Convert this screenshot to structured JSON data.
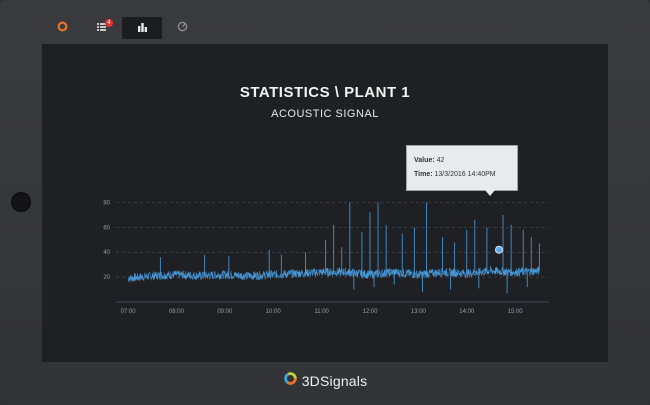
{
  "tabs": [
    {
      "icon": "donut-logo-icon",
      "badge": ""
    },
    {
      "icon": "alerts-list-icon",
      "badge": "4"
    },
    {
      "icon": "bar-chart-icon",
      "badge": ""
    },
    {
      "icon": "gauge-icon",
      "badge": ""
    }
  ],
  "header": {
    "title": "STATISTICS \\ PLANT 1",
    "subtitle": "ACOUSTIC SIGNAL"
  },
  "tooltip": {
    "value_label": "Value:",
    "value": "42",
    "time_label": "Time:",
    "time": "13/3/2016 14:40PM"
  },
  "brand": {
    "name": "3DSignals"
  },
  "colors": {
    "series": "#4a9ee0",
    "background": "#1f2024",
    "grid": "#44464c"
  },
  "chart_data": {
    "type": "line",
    "x_ticks": [
      "07:00",
      "08:00",
      "09:00",
      "10:00",
      "11:00",
      "12:00",
      "13:00",
      "14:00",
      "15:00"
    ],
    "y_ticks": [
      20,
      40,
      60,
      80
    ],
    "ylim": [
      0,
      90
    ],
    "xlim": [
      "06:45",
      "15:42"
    ],
    "grid": "horizontal-dashed",
    "series": [
      {
        "baseline": [
          [
            "07:00",
            19
          ],
          [
            "07:30",
            21
          ],
          [
            "08:00",
            22
          ],
          [
            "08:30",
            21
          ],
          [
            "09:00",
            22
          ],
          [
            "09:30",
            21
          ],
          [
            "10:00",
            22
          ],
          [
            "10:30",
            23
          ],
          [
            "11:00",
            24
          ],
          [
            "11:30",
            24
          ],
          [
            "12:00",
            22
          ],
          [
            "12:30",
            24
          ],
          [
            "13:00",
            22
          ],
          [
            "13:30",
            24
          ],
          [
            "14:00",
            23
          ],
          [
            "14:30",
            25
          ],
          [
            "15:00",
            24
          ],
          [
            "15:30",
            25
          ]
        ],
        "spikes": [
          [
            "07:40",
            36
          ],
          [
            "08:35",
            38
          ],
          [
            "09:05",
            37
          ],
          [
            "09:55",
            42
          ],
          [
            "10:10",
            38
          ],
          [
            "10:40",
            40
          ],
          [
            "11:05",
            50
          ],
          [
            "11:15",
            62
          ],
          [
            "11:25",
            44
          ],
          [
            "11:35",
            80
          ],
          [
            "11:50",
            56
          ],
          [
            "12:00",
            72
          ],
          [
            "12:10",
            80
          ],
          [
            "12:20",
            62
          ],
          [
            "12:40",
            55
          ],
          [
            "12:55",
            60
          ],
          [
            "13:10",
            80
          ],
          [
            "13:30",
            52
          ],
          [
            "13:45",
            48
          ],
          [
            "14:00",
            58
          ],
          [
            "14:10",
            66
          ],
          [
            "14:25",
            60
          ],
          [
            "14:45",
            70
          ],
          [
            "14:55",
            62
          ],
          [
            "15:10",
            58
          ],
          [
            "15:20",
            52
          ],
          [
            "15:30",
            47
          ]
        ],
        "dips": [
          [
            "11:40",
            10
          ],
          [
            "12:05",
            12
          ],
          [
            "12:30",
            14
          ],
          [
            "13:05",
            8
          ],
          [
            "13:40",
            10
          ],
          [
            "14:15",
            11
          ],
          [
            "14:50",
            7
          ],
          [
            "15:15",
            12
          ]
        ]
      }
    ],
    "highlight": {
      "x": "14:40",
      "y": 42
    }
  }
}
